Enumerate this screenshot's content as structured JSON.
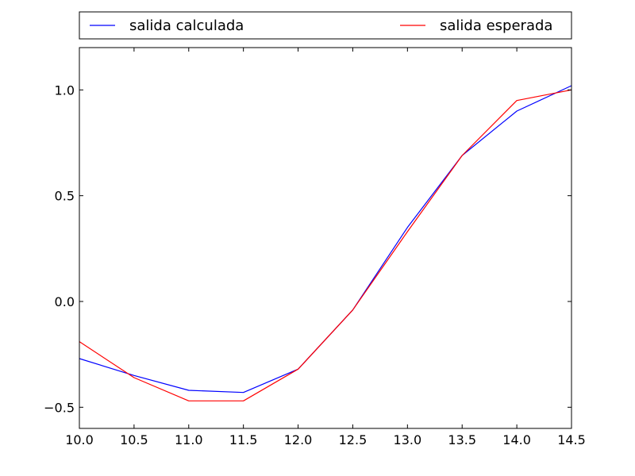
{
  "chart_data": {
    "type": "line",
    "title": "",
    "xlabel": "",
    "ylabel": "",
    "xlim": [
      10.0,
      14.5
    ],
    "ylim": [
      -0.6,
      1.2
    ],
    "grid": false,
    "legend_position": "top",
    "x_ticks": [
      {
        "value": 10.0,
        "label": "10.0"
      },
      {
        "value": 10.5,
        "label": "10.5"
      },
      {
        "value": 11.0,
        "label": "11.0"
      },
      {
        "value": 11.5,
        "label": "11.5"
      },
      {
        "value": 12.0,
        "label": "12.0"
      },
      {
        "value": 12.5,
        "label": "12.5"
      },
      {
        "value": 13.0,
        "label": "13.0"
      },
      {
        "value": 13.5,
        "label": "13.5"
      },
      {
        "value": 14.0,
        "label": "14.0"
      },
      {
        "value": 14.5,
        "label": "14.5"
      }
    ],
    "y_ticks": [
      {
        "value": -0.5,
        "label": "−0.5"
      },
      {
        "value": 0.0,
        "label": "0.0"
      },
      {
        "value": 0.5,
        "label": "0.5"
      },
      {
        "value": 1.0,
        "label": "1.0"
      }
    ],
    "x": [
      10.0,
      10.5,
      11.0,
      11.5,
      12.0,
      12.5,
      13.0,
      13.5,
      14.0,
      14.5
    ],
    "series": [
      {
        "name": "salida calculada",
        "color": "#0000ff",
        "values": [
          -0.27,
          -0.35,
          -0.42,
          -0.43,
          -0.32,
          -0.04,
          0.35,
          0.69,
          0.9,
          1.02
        ]
      },
      {
        "name": "salida esperada",
        "color": "#ff0000",
        "values": [
          -0.19,
          -0.36,
          -0.47,
          -0.47,
          -0.32,
          -0.04,
          0.33,
          0.69,
          0.95,
          1.0
        ]
      }
    ]
  }
}
